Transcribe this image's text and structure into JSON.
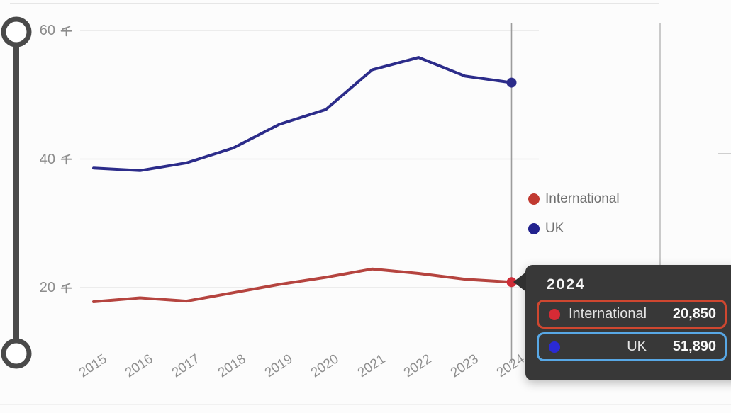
{
  "chart_data": {
    "type": "line",
    "title": "",
    "x_labels": [
      "2015",
      "2016",
      "2017",
      "2018",
      "2019",
      "2020",
      "2021",
      "2022",
      "2023",
      "2024"
    ],
    "series": [
      {
        "name": "International",
        "color": "#b5443f",
        "endpoint_color": "#cf2d38",
        "values": [
          17800,
          18400,
          17900,
          19200,
          20500,
          21600,
          22900,
          22200,
          21300,
          20850
        ]
      },
      {
        "name": "UK",
        "color": "#2c2c8a",
        "endpoint_color": "#2c2c8a",
        "values": [
          38600,
          38200,
          39400,
          41700,
          45400,
          47700,
          53900,
          55800,
          52900,
          51890
        ]
      }
    ],
    "y_unit_label": "千",
    "y_ticks": [
      {
        "value": 60000,
        "number": "60",
        "label": "60 千"
      },
      {
        "value": 40000,
        "number": "40",
        "label": "40 千"
      },
      {
        "value": 20000,
        "number": "20",
        "label": "20 千"
      }
    ],
    "ylim": [
      14000,
      62000
    ],
    "grid": "horizontal",
    "legend_position": "right",
    "legend_entries": [
      "International",
      "UK"
    ],
    "hovered_x": "2024"
  },
  "legend": {
    "items": [
      {
        "label": "International",
        "color": "#c13a31"
      },
      {
        "label": "UK",
        "color": "#22228e"
      }
    ]
  },
  "tooltip": {
    "title": "2024",
    "bg_color": "#383838",
    "rows": [
      {
        "label": "International",
        "value": "20,850",
        "dot_color": "#d62b35",
        "highlight_color": "#cf4730"
      },
      {
        "label": "UK",
        "value": "51,890",
        "dot_color": "#2a2ad4",
        "highlight_color": "#58a8e6"
      }
    ]
  }
}
